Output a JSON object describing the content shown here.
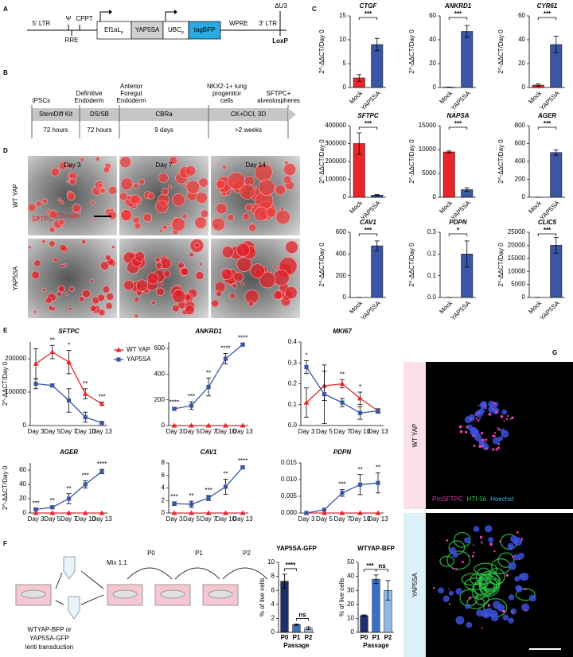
{
  "panel_labels": [
    "A",
    "B",
    "C",
    "D",
    "E",
    "F",
    "G"
  ],
  "vector": {
    "ltr5": "5′ LTR",
    "psi": "Ψ",
    "cppt": "CPPT",
    "rre": "RRE",
    "promoter1": {
      "text": "Ef1aL",
      "sub": "p"
    },
    "insert": "YAP5SA",
    "promoter2": {
      "text": "UBC",
      "sub": "p"
    },
    "reporter": "tagBFP",
    "wpre": "WPRE",
    "du3": "ΔU3",
    "ltr3": "3′ LTR",
    "loxp": "LoxP"
  },
  "timeline": {
    "stages": [
      [
        "iPSCs"
      ],
      [
        "Definitive",
        "Endoderm"
      ],
      [
        "Anterior",
        "Foregut",
        "Endoderm"
      ],
      [
        "NKX2-1+ lung",
        "progenitor",
        "cells"
      ],
      [
        "SFTPC+",
        "alveolospheres"
      ]
    ],
    "media": [
      "StemDiff Kit",
      "DS/SB",
      "CBRa",
      "CK+DCI, 3D"
    ],
    "durations": [
      "72 hours",
      "72 hours",
      "9 days",
      ">2 weeks"
    ]
  },
  "micrographs": {
    "days": [
      "Day 3",
      "Day 7",
      "Day 14"
    ],
    "rows": [
      "WT YAP",
      "YAP5SA"
    ],
    "stain": {
      "text": "SFTPC",
      "sup": "tdTomato"
    }
  },
  "passaging": {
    "mix": "Mix 1:1",
    "passages": [
      "P0",
      "P1",
      "P2"
    ],
    "transduction": [
      "WTYAP-BFP or",
      "YAP5SA-GFP",
      "lenti transduction"
    ]
  },
  "immunofluorescence": {
    "rows": [
      "WT YAP",
      "YAP5SA"
    ],
    "stains": [
      "ProSFTPC",
      "HTI-56",
      "Hoechst"
    ]
  },
  "chart_data": [
    {
      "type": "bar",
      "title": "CTGF",
      "ylabel": "2^-ΔΔCT/Day 0",
      "categories": [
        "Mock",
        "YAP5SA"
      ],
      "values": [
        2,
        9
      ],
      "errors": [
        0.7,
        1.3
      ],
      "colors": [
        "#e8262a",
        "#3a56a5"
      ],
      "ylim": [
        0,
        15
      ],
      "yticks": [
        0,
        5,
        10,
        15
      ],
      "significance": "***"
    },
    {
      "type": "bar",
      "title": "ANKRD1",
      "ylabel": "2^-ΔΔCT/Day 0",
      "categories": [
        "Mock",
        "YAP5SA"
      ],
      "values": [
        0.3,
        47
      ],
      "errors": [
        0.1,
        5
      ],
      "colors": [
        "#e8262a",
        "#3a56a5"
      ],
      "ylim": [
        0,
        60
      ],
      "yticks": [
        0,
        20,
        40,
        60
      ],
      "significance": "***"
    },
    {
      "type": "bar",
      "title": "CYR61",
      "ylabel": "2^-ΔΔCT/Day 0",
      "categories": [
        "Mock",
        "YAP5SA"
      ],
      "values": [
        2,
        36
      ],
      "errors": [
        1,
        7
      ],
      "colors": [
        "#e8262a",
        "#3a56a5"
      ],
      "ylim": [
        0,
        60
      ],
      "yticks": [
        0,
        20,
        40,
        60
      ],
      "significance": "***"
    },
    {
      "type": "bar",
      "title": "SFTPC",
      "ylabel": "2^-ΔΔCT/Day 0",
      "categories": [
        "Mock",
        "YAP5SA"
      ],
      "values": [
        300000,
        12000
      ],
      "errors": [
        60000,
        3000
      ],
      "colors": [
        "#e8262a",
        "#3a56a5"
      ],
      "ylim": [
        0,
        400000
      ],
      "yticks": [
        0,
        100000,
        200000,
        300000,
        400000
      ],
      "significance": "***"
    },
    {
      "type": "bar",
      "title": "NAPSA",
      "ylabel": "2^-ΔΔCT/Day 0",
      "categories": [
        "Mock",
        "YAP5SA"
      ],
      "values": [
        9500,
        1600
      ],
      "errors": [
        200,
        400
      ],
      "colors": [
        "#e8262a",
        "#3a56a5"
      ],
      "ylim": [
        0,
        15000
      ],
      "yticks": [
        0,
        5000,
        10000,
        15000
      ],
      "significance": "***"
    },
    {
      "type": "bar",
      "title": "AGER",
      "ylabel": "2^-ΔΔCT/Day 0",
      "categories": [
        "Mock",
        "YAP5SA"
      ],
      "values": [
        0,
        500
      ],
      "errors": [
        0,
        30
      ],
      "colors": [
        "#e8262a",
        "#3a56a5"
      ],
      "ylim": [
        0,
        800
      ],
      "yticks": [
        0,
        200,
        400,
        600,
        800
      ],
      "significance": "***"
    },
    {
      "type": "bar",
      "title": "CAV1",
      "ylabel": "2^-ΔΔCT/Day 0",
      "categories": [
        "Mock",
        "YAP5SA"
      ],
      "values": [
        0,
        475
      ],
      "errors": [
        0,
        45
      ],
      "colors": [
        "#e8262a",
        "#3a56a5"
      ],
      "ylim": [
        0,
        600
      ],
      "yticks": [
        0,
        200,
        400,
        600
      ],
      "significance": "***"
    },
    {
      "type": "bar",
      "title": "PDPN",
      "ylabel": "2^-ΔΔCT/Day 0",
      "categories": [
        "Mock",
        "YAP5SA"
      ],
      "values": [
        0,
        0.2
      ],
      "errors": [
        0,
        0.06
      ],
      "colors": [
        "#e8262a",
        "#3a56a5"
      ],
      "ylim": [
        0,
        0.3
      ],
      "yticks": [
        {
          "value": 0,
          "label": "0.0"
        },
        0.1,
        0.2,
        0.3
      ],
      "significance": "*"
    },
    {
      "type": "bar",
      "title": "CLIC5",
      "ylabel": "2^-ΔΔCT/Day 0",
      "categories": [
        "Mock",
        "YAP5SA"
      ],
      "values": [
        0,
        20000
      ],
      "errors": [
        0,
        3000
      ],
      "colors": [
        "#e8262a",
        "#3a56a5"
      ],
      "ylim": [
        0,
        25000
      ],
      "yticks": [
        0,
        5000,
        10000,
        15000,
        20000,
        25000
      ],
      "significance": "***"
    },
    {
      "type": "line",
      "title": "SFTPC",
      "ylabel": "2^-ΔΔCT/Day 0",
      "categories": [
        "Day 3",
        "Day 5",
        "Day 7",
        "Day 10",
        "Day 13"
      ],
      "series": [
        {
          "name": "WT YAP",
          "color": "#e8262a",
          "marker": "triangle",
          "values": [
            185000,
            220000,
            190000,
            95000,
            65000
          ],
          "errors": [
            45000,
            20000,
            35000,
            15000,
            5000
          ]
        },
        {
          "name": "YAP5SA",
          "color": "#3a56a5",
          "marker": "square",
          "values": [
            125000,
            120000,
            75000,
            25000,
            8000
          ],
          "errors": [
            15000,
            5000,
            35000,
            15000,
            3000
          ]
        }
      ],
      "ylim": [
        0,
        250000
      ],
      "yticks": [
        0,
        100000,
        200000
      ],
      "annotations": [
        null,
        "**",
        "*",
        "**",
        "***"
      ],
      "legend": true
    },
    {
      "type": "line",
      "title": "ANKRD1",
      "categories": [
        "Day 3",
        "Day 5",
        "Day 7",
        "Day 10",
        "Day 13"
      ],
      "series": [
        {
          "color": "#e8262a",
          "marker": "triangle",
          "values": [
            0,
            0,
            0,
            0,
            0
          ],
          "errors": [
            0,
            0,
            0,
            0,
            0
          ]
        },
        {
          "color": "#3a56a5",
          "marker": "square",
          "values": [
            130,
            155,
            300,
            520,
            630
          ],
          "errors": [
            10,
            30,
            70,
            40,
            10
          ]
        }
      ],
      "ylim": [
        0,
        650
      ],
      "yticks": [
        0,
        200,
        400,
        600
      ],
      "annotations": [
        "****",
        "***",
        "**",
        "****",
        "****"
      ]
    },
    {
      "type": "line",
      "title": "MKI67",
      "categories": [
        "Day 3",
        "Day 5",
        "Day 7",
        "Day 10",
        "Day 13"
      ],
      "series": [
        {
          "color": "#e8262a",
          "marker": "triangle",
          "values": [
            0.11,
            0.19,
            0.2,
            0.13,
            0.07
          ],
          "errors": [
            0.07,
            0.07,
            0.02,
            0.03,
            0.01
          ]
        },
        {
          "color": "#3a56a5",
          "marker": "square",
          "values": [
            0.28,
            0.15,
            0.11,
            0.06,
            0.07
          ],
          "errors": [
            0.03,
            0.14,
            0.02,
            0.03,
            0.01
          ]
        }
      ],
      "ylim": [
        0,
        0.4
      ],
      "yticks": [
        {
          "value": 0,
          "label": "0.0"
        },
        0.1,
        0.2,
        0.3,
        0.4
      ],
      "annotations": [
        "*",
        null,
        "**",
        "*",
        null
      ]
    },
    {
      "type": "line",
      "title": "AGER",
      "ylabel": "2^-ΔΔCT/Day 0",
      "categories": [
        "Day 3",
        "Day 5",
        "Day 7",
        "Day 10",
        "Day 13"
      ],
      "series": [
        {
          "color": "#e8262a",
          "marker": "triangle",
          "values": [
            0,
            0,
            0,
            0,
            0
          ],
          "errors": [
            0,
            0,
            0,
            0,
            0
          ]
        },
        {
          "color": "#3a56a5",
          "marker": "square",
          "values": [
            5,
            8,
            20,
            40,
            58
          ],
          "errors": [
            1,
            2,
            7,
            5,
            3
          ]
        }
      ],
      "ylim": [
        0,
        70
      ],
      "yticks": [
        0,
        20,
        40,
        60
      ],
      "annotations": [
        "***",
        "**",
        "**",
        "***",
        "****"
      ]
    },
    {
      "type": "line",
      "title": "CAV1",
      "categories": [
        "Day 3",
        "Day 5",
        "Day 7",
        "Day 10",
        "Day 13"
      ],
      "series": [
        {
          "color": "#e8262a",
          "marker": "triangle",
          "values": [
            0,
            0,
            0,
            0,
            0
          ],
          "errors": [
            0,
            0,
            0,
            0,
            0
          ]
        },
        {
          "color": "#3a56a5",
          "marker": "square",
          "values": [
            1.5,
            1.4,
            2.4,
            4.2,
            7.3
          ],
          "errors": [
            0.3,
            0.5,
            0.4,
            1.2,
            0.2
          ]
        }
      ],
      "ylim": [
        0,
        8
      ],
      "yticks": [
        0,
        2,
        4,
        6,
        8
      ],
      "annotations": [
        "***",
        "**",
        "***",
        "**",
        "****"
      ]
    },
    {
      "type": "line",
      "title": "PDPN",
      "categories": [
        "Day 3",
        "Day 5",
        "Day 7",
        "Day 10",
        "Day 13"
      ],
      "series": [
        {
          "color": "#e8262a",
          "marker": "triangle",
          "values": [
            0,
            0,
            0,
            0,
            0
          ],
          "errors": [
            0,
            0,
            0,
            0,
            0
          ]
        },
        {
          "color": "#3a56a5",
          "marker": "square",
          "values": [
            0,
            0.001,
            0.006,
            0.0085,
            0.009
          ],
          "errors": [
            0,
            0,
            0.001,
            0.003,
            0.003
          ]
        }
      ],
      "ylim": [
        0,
        0.015
      ],
      "yticks": [
        {
          "value": 0,
          "label": "0.000"
        },
        0.005,
        {
          "value": 0.01,
          "label": "0.010"
        },
        0.015
      ],
      "annotations": [
        null,
        null,
        "***",
        "**",
        "**"
      ]
    },
    {
      "type": "bar",
      "title": "YAP5SA-GFP",
      "ylabel": "% of live cells",
      "xlabel": "Passage",
      "categories": [
        "P0",
        "P1",
        "P2"
      ],
      "values": [
        7.3,
        1.1,
        0.6
      ],
      "errors": [
        1,
        0.1,
        0.2
      ],
      "colors": [
        "#1f2e6e",
        "#3a6fc4",
        "#8fb8e8"
      ],
      "ylim": [
        0,
        10
      ],
      "yticks": [
        0,
        2,
        4,
        6,
        8,
        10
      ],
      "significance": [
        "****",
        "ns"
      ]
    },
    {
      "type": "bar",
      "title": "WTYAP-BFP",
      "ylabel": "% of live cells",
      "xlabel": "Passage",
      "categories": [
        "P0",
        "P1",
        "P2"
      ],
      "values": [
        12,
        38,
        30
      ],
      "errors": [
        0.5,
        3,
        7
      ],
      "colors": [
        "#1f2e6e",
        "#3a6fc4",
        "#8fb8e8"
      ],
      "ylim": [
        0,
        50
      ],
      "yticks": [
        0,
        10,
        20,
        30,
        40,
        50
      ],
      "significance": [
        "***",
        "ns"
      ]
    }
  ]
}
